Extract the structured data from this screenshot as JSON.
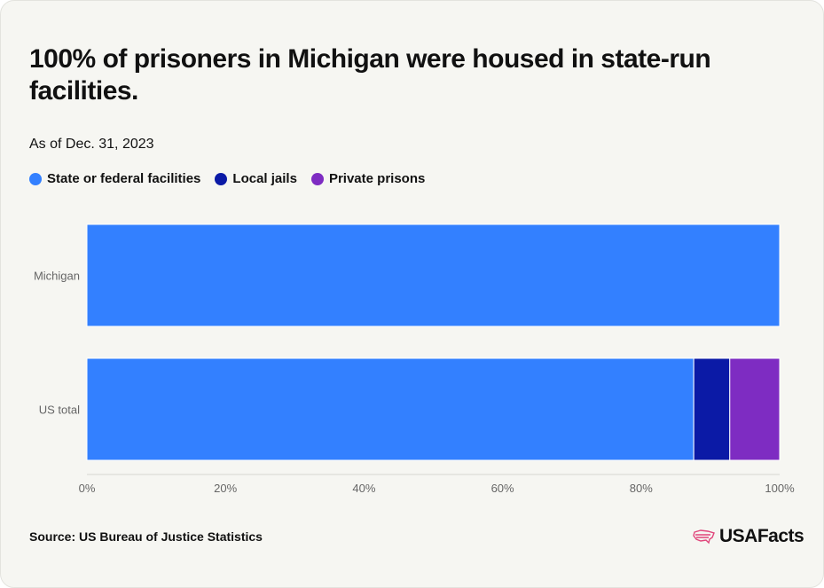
{
  "title": "100% of prisoners in Michigan were housed in state-run facilities.",
  "subtitle": "As of Dec. 31, 2023",
  "source": "Source: US Bureau of Justice Statistics",
  "brand": "USAFacts",
  "brand_icon": "us-flag-map-icon",
  "colors": {
    "background": "#f6f6f2",
    "state_federal": "#3380ff",
    "local_jails": "#0b1aa6",
    "private_prisons": "#7e2cc2",
    "brand_accent": "#e0457b"
  },
  "chart_data": {
    "type": "bar",
    "orientation": "horizontal",
    "stacked": true,
    "categories": [
      "Michigan",
      "US total"
    ],
    "series": [
      {
        "name": "State or federal facilities",
        "color": "#3380ff",
        "values": [
          100,
          87.6
        ]
      },
      {
        "name": "Local jails",
        "color": "#0b1aa6",
        "values": [
          0,
          5.2
        ]
      },
      {
        "name": "Private prisons",
        "color": "#7e2cc2",
        "values": [
          0,
          7.2
        ]
      }
    ],
    "xlim": [
      0,
      100
    ],
    "xticks": [
      0,
      20,
      40,
      60,
      80,
      100
    ],
    "xtick_labels": [
      "0%",
      "20%",
      "40%",
      "60%",
      "80%",
      "100%"
    ],
    "grid": false,
    "legend_position": "top-left"
  }
}
